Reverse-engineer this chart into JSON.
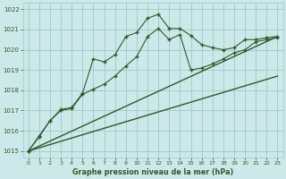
{
  "title": "Graphe pression niveau de la mer (hPa)",
  "bg_color": "#cce8e8",
  "grid_color": "#99cccc",
  "line_color": "#2d5a2d",
  "marker_color": "#2d5a2d",
  "xlim": [
    -0.5,
    23.5
  ],
  "ylim": [
    1014.7,
    1022.3
  ],
  "xticks": [
    0,
    1,
    2,
    3,
    4,
    5,
    6,
    7,
    8,
    9,
    10,
    11,
    12,
    13,
    14,
    15,
    16,
    17,
    18,
    19,
    20,
    21,
    22,
    23
  ],
  "yticks": [
    1015,
    1016,
    1017,
    1018,
    1019,
    1020,
    1021,
    1022
  ],
  "series_upper_x": [
    0,
    1,
    2,
    3,
    4,
    5,
    6,
    7,
    8,
    9,
    10,
    11,
    12,
    13,
    14,
    15,
    16,
    17,
    18,
    19,
    20,
    21,
    22,
    23
  ],
  "series_upper_y": [
    1015.0,
    1015.7,
    1016.5,
    1017.05,
    1017.15,
    1017.85,
    1019.55,
    1019.4,
    1019.75,
    1020.65,
    1020.85,
    1021.55,
    1021.75,
    1021.05,
    1021.05,
    1020.7,
    1020.25,
    1020.1,
    1020.0,
    1020.1,
    1020.5,
    1020.5,
    1020.6,
    1020.65
  ],
  "series_lower_x": [
    0,
    1,
    2,
    3,
    4,
    5,
    6,
    7,
    8,
    9,
    10,
    11,
    12,
    13,
    14,
    15,
    16,
    17,
    18,
    19,
    20,
    21,
    22,
    23
  ],
  "series_lower_y": [
    1015.0,
    1015.75,
    1016.5,
    1017.0,
    1017.1,
    1017.8,
    1018.05,
    1018.3,
    1018.7,
    1019.2,
    1019.65,
    1020.65,
    1021.05,
    1020.5,
    1020.75,
    1019.0,
    1019.1,
    1019.3,
    1019.55,
    1019.85,
    1020.0,
    1020.4,
    1020.5,
    1020.6
  ],
  "trend1_x": [
    0,
    23
  ],
  "trend1_y": [
    1015.0,
    1018.7
  ],
  "trend2_x": [
    0,
    23
  ],
  "trend2_y": [
    1015.0,
    1020.65
  ]
}
